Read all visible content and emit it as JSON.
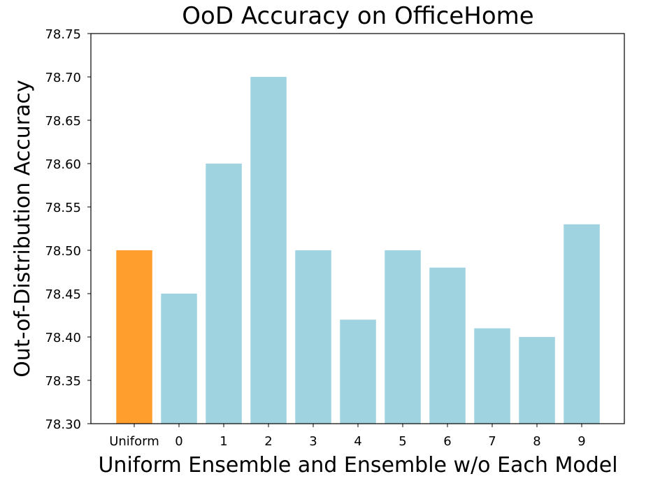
{
  "chart_data": {
    "type": "bar",
    "title": "OoD Accuracy on OfficeHome",
    "xlabel": "Uniform Ensemble and Ensemble w/o Each Model",
    "ylabel": "Out-of-Distribution Accuracy",
    "categories": [
      "Uniform",
      "0",
      "1",
      "2",
      "3",
      "4",
      "5",
      "6",
      "7",
      "8",
      "9"
    ],
    "values": [
      78.5,
      78.45,
      78.6,
      78.7,
      78.5,
      78.42,
      78.5,
      78.48,
      78.41,
      78.4,
      78.53
    ],
    "ylim": [
      78.3,
      78.75
    ],
    "yticks": [
      "78.30",
      "78.35",
      "78.40",
      "78.45",
      "78.50",
      "78.55",
      "78.60",
      "78.65",
      "78.70",
      "78.75"
    ],
    "grid": false,
    "colors": {
      "highlight": "#ff9d2d",
      "bar": "#9fd3e0",
      "axis": "#000000"
    }
  }
}
